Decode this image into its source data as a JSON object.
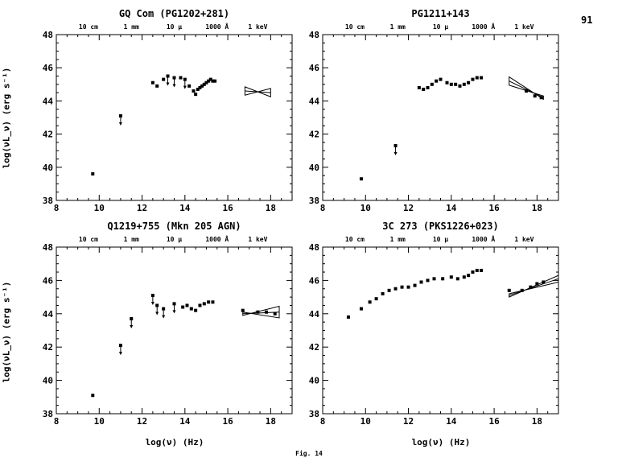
{
  "page_number": "91",
  "figure_label": "Fig. 14",
  "ylabel": "log(νL_ν) (erg s⁻¹)",
  "xlabel": "log(ν) (Hz)",
  "chart_data": [
    {
      "type": "scatter",
      "title": "GQ Com (PG1202+281)",
      "top_axis_labels": [
        "10 cm",
        "1 mm",
        "10 μ",
        "1000 Å",
        "1 keV"
      ],
      "top_axis_positions": [
        9.5,
        11.5,
        13.5,
        15.5,
        17.4
      ],
      "xlim": [
        8,
        19
      ],
      "ylim": [
        38,
        48
      ],
      "xticks": [
        8,
        10,
        12,
        14,
        16,
        18
      ],
      "yticks": [
        38,
        40,
        42,
        44,
        46,
        48
      ],
      "points": [
        {
          "x": 9.7,
          "y": 39.6
        },
        {
          "x": 11.0,
          "y": 43.1,
          "upper_limit": true
        },
        {
          "x": 12.5,
          "y": 45.1
        },
        {
          "x": 12.7,
          "y": 44.9
        },
        {
          "x": 13.0,
          "y": 45.3
        },
        {
          "x": 13.2,
          "y": 45.5,
          "upper_limit": true
        },
        {
          "x": 13.5,
          "y": 45.4,
          "upper_limit": true
        },
        {
          "x": 13.8,
          "y": 45.4
        },
        {
          "x": 14.0,
          "y": 45.3,
          "upper_limit": true
        },
        {
          "x": 14.2,
          "y": 44.9
        },
        {
          "x": 14.4,
          "y": 44.6
        },
        {
          "x": 14.5,
          "y": 44.4
        },
        {
          "x": 14.6,
          "y": 44.7
        },
        {
          "x": 14.7,
          "y": 44.8
        },
        {
          "x": 14.8,
          "y": 44.9
        },
        {
          "x": 14.9,
          "y": 45.0
        },
        {
          "x": 15.0,
          "y": 45.1
        },
        {
          "x": 15.1,
          "y": 45.2
        },
        {
          "x": 15.2,
          "y": 45.3
        },
        {
          "x": 15.3,
          "y": 45.2
        },
        {
          "x": 15.4,
          "y": 45.2
        }
      ],
      "xray_bowtie": {
        "x": [
          16.8,
          18.0
        ],
        "y_center": [
          44.6,
          44.5
        ],
        "spread": [
          0.25,
          0.25
        ]
      }
    },
    {
      "type": "scatter",
      "title": "PG1211+143",
      "top_axis_labels": [
        "10 cm",
        "1 mm",
        "10 μ",
        "1000 Å",
        "1 keV"
      ],
      "top_axis_positions": [
        9.5,
        11.5,
        13.5,
        15.5,
        17.4
      ],
      "xlim": [
        8,
        19
      ],
      "ylim": [
        38,
        48
      ],
      "xticks": [
        8,
        10,
        12,
        14,
        16,
        18
      ],
      "yticks": [
        38,
        40,
        42,
        44,
        46,
        48
      ],
      "points": [
        {
          "x": 9.8,
          "y": 39.3
        },
        {
          "x": 11.4,
          "y": 41.3,
          "upper_limit": true
        },
        {
          "x": 12.5,
          "y": 44.8
        },
        {
          "x": 12.7,
          "y": 44.7
        },
        {
          "x": 12.9,
          "y": 44.8
        },
        {
          "x": 13.1,
          "y": 45.0
        },
        {
          "x": 13.3,
          "y": 45.2
        },
        {
          "x": 13.5,
          "y": 45.3
        },
        {
          "x": 13.8,
          "y": 45.1
        },
        {
          "x": 14.0,
          "y": 45.0
        },
        {
          "x": 14.2,
          "y": 45.0
        },
        {
          "x": 14.4,
          "y": 44.9
        },
        {
          "x": 14.6,
          "y": 45.0
        },
        {
          "x": 14.8,
          "y": 45.1
        },
        {
          "x": 15.0,
          "y": 45.3
        },
        {
          "x": 15.2,
          "y": 45.4
        },
        {
          "x": 15.4,
          "y": 45.4
        },
        {
          "x": 17.5,
          "y": 44.6
        },
        {
          "x": 17.9,
          "y": 44.3
        },
        {
          "x": 18.2,
          "y": 44.2
        }
      ],
      "xray_bowtie": {
        "x": [
          16.7,
          18.3
        ],
        "y_center": [
          45.2,
          44.2
        ],
        "spread": [
          0.25,
          0.1
        ]
      }
    },
    {
      "type": "scatter",
      "title": "Q1219+755 (Mkn 205 AGN)",
      "top_axis_labels": [
        "10 cm",
        "1 mm",
        "10 μ",
        "1000 Å",
        "1 keV"
      ],
      "top_axis_positions": [
        9.5,
        11.5,
        13.5,
        15.5,
        17.4
      ],
      "xlim": [
        8,
        19
      ],
      "ylim": [
        38,
        48
      ],
      "xticks": [
        8,
        10,
        12,
        14,
        16,
        18
      ],
      "yticks": [
        38,
        40,
        42,
        44,
        46,
        48
      ],
      "points": [
        {
          "x": 9.7,
          "y": 39.1
        },
        {
          "x": 11.0,
          "y": 42.1,
          "upper_limit": true
        },
        {
          "x": 11.5,
          "y": 43.7,
          "upper_limit": true
        },
        {
          "x": 12.5,
          "y": 45.1,
          "upper_limit": true
        },
        {
          "x": 12.7,
          "y": 44.5,
          "upper_limit": true
        },
        {
          "x": 13.0,
          "y": 44.3,
          "upper_limit": true
        },
        {
          "x": 13.5,
          "y": 44.6,
          "upper_limit": true
        },
        {
          "x": 13.9,
          "y": 44.4
        },
        {
          "x": 14.1,
          "y": 44.5
        },
        {
          "x": 14.3,
          "y": 44.3
        },
        {
          "x": 14.5,
          "y": 44.2
        },
        {
          "x": 14.7,
          "y": 44.5
        },
        {
          "x": 14.9,
          "y": 44.6
        },
        {
          "x": 15.1,
          "y": 44.7
        },
        {
          "x": 15.3,
          "y": 44.7
        },
        {
          "x": 16.7,
          "y": 44.2
        },
        {
          "x": 17.4,
          "y": 44.1
        },
        {
          "x": 17.8,
          "y": 44.1
        },
        {
          "x": 18.2,
          "y": 44.0
        }
      ],
      "xray_bowtie": {
        "x": [
          16.7,
          18.4
        ],
        "y_center": [
          44.0,
          44.1
        ],
        "spread": [
          0.1,
          0.35
        ]
      }
    },
    {
      "type": "scatter",
      "title": "3C 273 (PKS1226+023)",
      "top_axis_labels": [
        "10 cm",
        "1 mm",
        "10 μ",
        "1000 Å",
        "1 keV"
      ],
      "top_axis_positions": [
        9.5,
        11.5,
        13.5,
        15.5,
        17.4
      ],
      "xlim": [
        8,
        19
      ],
      "ylim": [
        38,
        48
      ],
      "xticks": [
        8,
        10,
        12,
        14,
        16,
        18
      ],
      "yticks": [
        38,
        40,
        42,
        44,
        46,
        48
      ],
      "points": [
        {
          "x": 9.2,
          "y": 43.8
        },
        {
          "x": 9.8,
          "y": 44.3
        },
        {
          "x": 10.2,
          "y": 44.7
        },
        {
          "x": 10.5,
          "y": 44.9
        },
        {
          "x": 10.8,
          "y": 45.2
        },
        {
          "x": 11.1,
          "y": 45.4
        },
        {
          "x": 11.4,
          "y": 45.5
        },
        {
          "x": 11.7,
          "y": 45.6
        },
        {
          "x": 12.0,
          "y": 45.6
        },
        {
          "x": 12.3,
          "y": 45.7
        },
        {
          "x": 12.6,
          "y": 45.9
        },
        {
          "x": 12.9,
          "y": 46.0
        },
        {
          "x": 13.2,
          "y": 46.1
        },
        {
          "x": 13.6,
          "y": 46.1
        },
        {
          "x": 14.0,
          "y": 46.2
        },
        {
          "x": 14.3,
          "y": 46.1
        },
        {
          "x": 14.6,
          "y": 46.2
        },
        {
          "x": 14.8,
          "y": 46.3
        },
        {
          "x": 15.0,
          "y": 46.5
        },
        {
          "x": 15.2,
          "y": 46.6
        },
        {
          "x": 15.4,
          "y": 46.6
        },
        {
          "x": 16.7,
          "y": 45.4
        },
        {
          "x": 17.3,
          "y": 45.4
        },
        {
          "x": 17.7,
          "y": 45.6
        },
        {
          "x": 18.0,
          "y": 45.8
        },
        {
          "x": 18.3,
          "y": 45.9
        }
      ],
      "xray_bowtie": {
        "x": [
          16.7,
          19.0
        ],
        "y_center": [
          45.1,
          46.1
        ],
        "spread": [
          0.1,
          0.2
        ]
      }
    }
  ]
}
